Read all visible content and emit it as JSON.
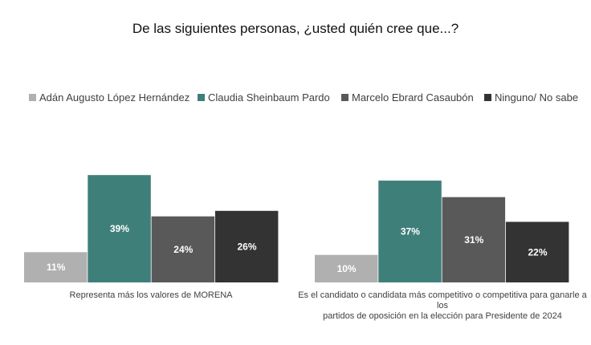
{
  "title": "De las siguientes personas, ¿usted quién cree que...?",
  "legend": [
    {
      "label": "Adán Augusto López Hernández",
      "color": "#b0b0b0"
    },
    {
      "label": "Claudia Sheinbaum Pardo",
      "color": "#3f7f7a"
    },
    {
      "label": "Marcelo Ebrard Casaubón",
      "color": "#595959"
    },
    {
      "label": "Ninguno/ No sabe",
      "color": "#333333"
    }
  ],
  "chart_data": [
    {
      "type": "bar",
      "title": "Representa más los valores de MORENA",
      "categories": [
        "Adán Augusto López Hernández",
        "Claudia Sheinbaum Pardo",
        "Marcelo Ebrard Casaubón",
        "Ninguno/ No sabe"
      ],
      "values": [
        11,
        39,
        24,
        26
      ],
      "labels": [
        "11%",
        "39%",
        "24%",
        "26%"
      ],
      "ylim": [
        0,
        40
      ]
    },
    {
      "type": "bar",
      "title": "Es el candidato o candidata más competitivo o competitiva para ganarle a los partidos de oposición en la elección para Presidente de 2024",
      "title_lines": [
        "Es el candidato o candidata más competitivo o competitiva para ganarle a los",
        "partidos de oposición en la elección para Presidente de 2024"
      ],
      "categories": [
        "Adán Augusto López Hernández",
        "Claudia Sheinbaum Pardo",
        "Marcelo Ebrard Casaubón",
        "Ninguno/ No sabe"
      ],
      "values": [
        10,
        37,
        31,
        22
      ],
      "labels": [
        "10%",
        "37%",
        "31%",
        "22%"
      ],
      "ylim": [
        0,
        40
      ]
    }
  ]
}
